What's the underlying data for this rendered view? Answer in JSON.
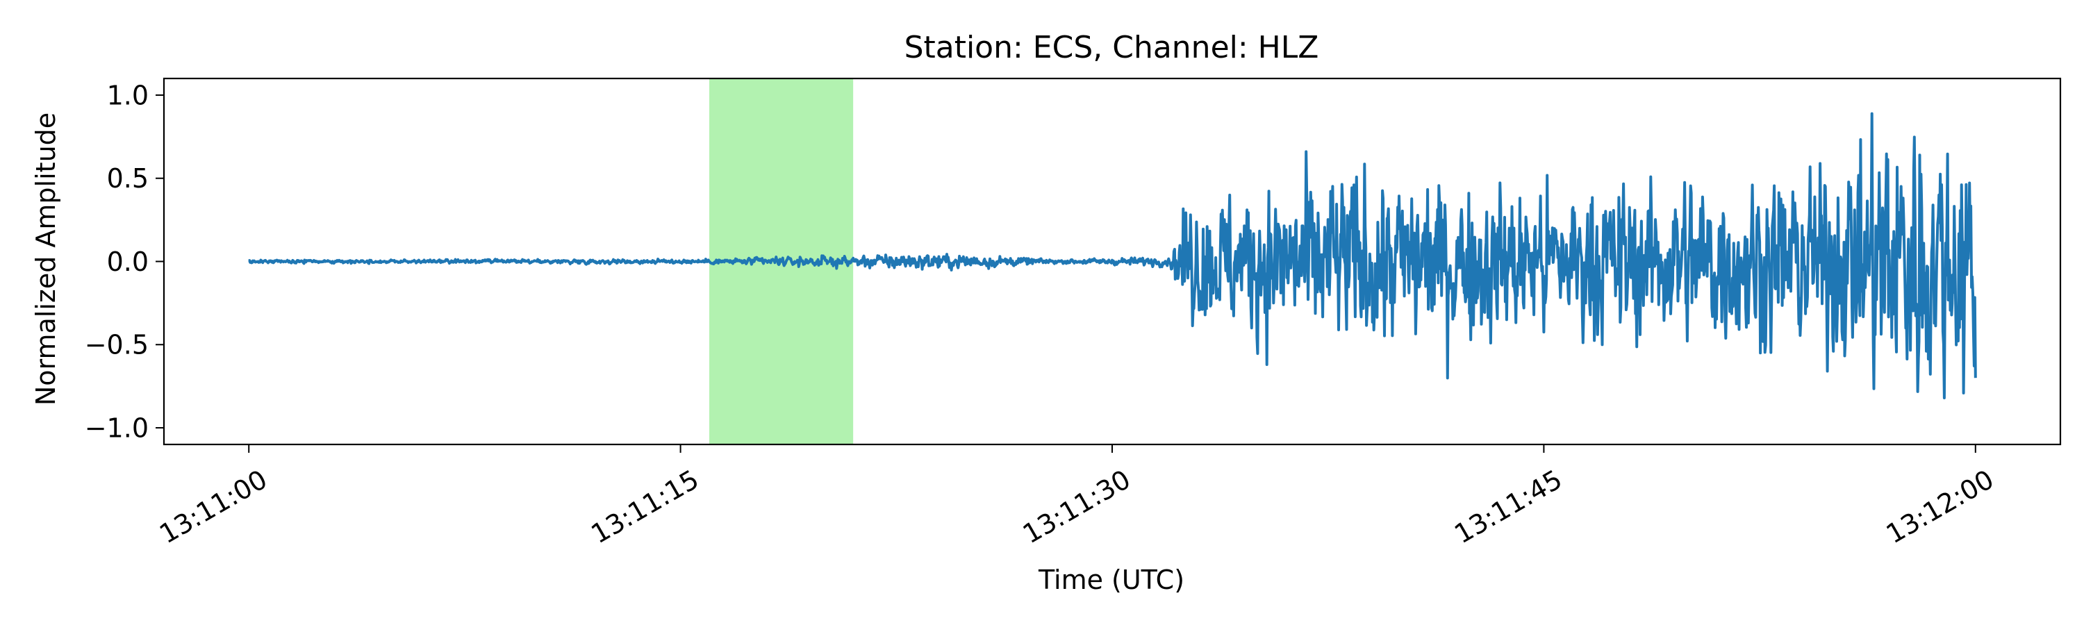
{
  "chart_data": {
    "type": "line",
    "title": "Station: ECS, Channel: HLZ",
    "xlabel": "Time (UTC)",
    "ylabel": "Normalized Amplitude",
    "x_ticks": [
      "13:11:00",
      "13:11:15",
      "13:11:30",
      "13:11:45",
      "13:12:00"
    ],
    "x_tick_seconds": [
      0,
      15,
      30,
      45,
      60
    ],
    "y_ticks": [
      "1.0",
      "0.5",
      "0.0",
      "−0.5",
      "−1.0"
    ],
    "y_tick_values": [
      1.0,
      0.5,
      0.0,
      -0.5,
      -1.0
    ],
    "xlim_seconds": [
      -2.95,
      62.95
    ],
    "ylim": [
      -1.1,
      1.1
    ],
    "grid": false,
    "line_color": "#1f77b4",
    "highlight": {
      "start_seconds": 16.0,
      "end_seconds": 21.0,
      "color": "#b2f2b0"
    },
    "series_envelope": [
      {
        "t": 0,
        "amplitude": 0.01
      },
      {
        "t": 16,
        "amplitude": 0.015
      },
      {
        "t": 21,
        "amplitude": 0.04
      },
      {
        "t": 22.5,
        "amplitude": 0.05
      },
      {
        "t": 25,
        "amplitude": 0.05
      },
      {
        "t": 28,
        "amplitude": 0.012
      },
      {
        "t": 32,
        "amplitude": 0.03
      },
      {
        "t": 32.6,
        "amplitude": 0.4
      },
      {
        "t": 38,
        "amplitude": 0.6
      },
      {
        "t": 45,
        "amplitude": 0.5
      },
      {
        "t": 55,
        "amplitude": 0.6
      },
      {
        "t": 57.5,
        "amplitude": 1.0
      },
      {
        "t": 60,
        "amplitude": 0.8
      }
    ],
    "series_end_value": -0.7
  }
}
